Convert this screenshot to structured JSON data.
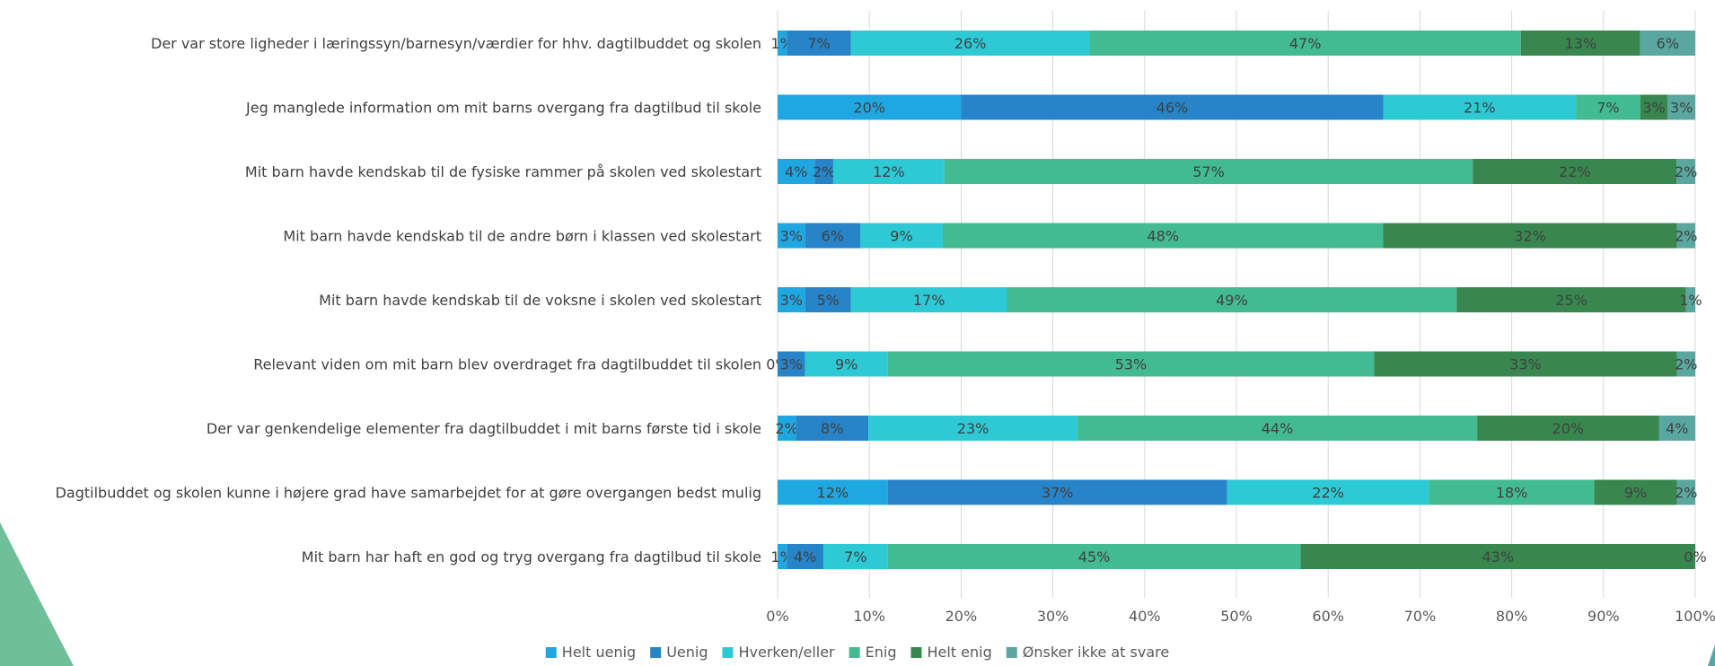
{
  "chart_data": {
    "type": "bar",
    "orientation": "horizontal",
    "stacked": "percent",
    "categories": [
      "Der var store ligheder i læringssyn/barnesyn/værdier for hhv. dagtilbuddet og skolen",
      "Jeg manglede information om mit barns overgang fra dagtilbud til skole",
      "Mit barn havde kendskab til de fysiske rammer på skolen ved skolestart",
      "Mit barn havde kendskab til de andre børn i klassen ved skolestart",
      "Mit barn havde kendskab til de voksne i skolen ved skolestart",
      "Relevant viden om mit barn blev overdraget fra dagtilbuddet til skolen",
      "Der var genkendelige elementer fra dagtilbuddet i mit barns første tid i skole",
      "Dagtilbuddet og skolen kunne i højere grad have samarbejdet for at gøre overgangen bedst mulig",
      "Mit barn har haft en god og tryg overgang fra dagtilbud til skole"
    ],
    "series": [
      {
        "name": "Helt uenig",
        "color": "#1fa7e1",
        "values": [
          1,
          20,
          4,
          3,
          3,
          0,
          2,
          12,
          1
        ],
        "labels": [
          "1%",
          "20%",
          "4%",
          "3%",
          "3%",
          "0%",
          "2%",
          "12%",
          "1%"
        ]
      },
      {
        "name": "Uenig",
        "color": "#2784c8",
        "values": [
          7,
          46,
          2,
          6,
          5,
          3,
          8,
          37,
          4
        ],
        "labels": [
          "7%",
          "46%",
          "2%",
          "6%",
          "5%",
          "3%",
          "8%",
          "37%",
          "4%"
        ]
      },
      {
        "name": "Hverken/eller",
        "color": "#2dcad6",
        "values": [
          26,
          21,
          12,
          9,
          17,
          9,
          23,
          22,
          7
        ],
        "labels": [
          "26%",
          "21%",
          "12%",
          "9%",
          "17%",
          "9%",
          "23%",
          "22%",
          "7%"
        ]
      },
      {
        "name": "Enig",
        "color": "#42ba92",
        "values": [
          47,
          7,
          57,
          48,
          49,
          53,
          44,
          18,
          45
        ],
        "labels": [
          "47%",
          "7%",
          "57%",
          "48%",
          "49%",
          "53%",
          "44%",
          "18%",
          "45%"
        ]
      },
      {
        "name": "Helt enig",
        "color": "#38874f",
        "values": [
          13,
          3,
          22,
          32,
          25,
          33,
          20,
          9,
          43
        ],
        "labels": [
          "13%",
          "3%",
          "22%",
          "32%",
          "25%",
          "33%",
          "20%",
          "9%",
          "43%"
        ]
      },
      {
        "name": "Ønsker ikke at svare",
        "color": "#5aa7a1",
        "values": [
          6,
          3,
          2,
          2,
          1,
          2,
          4,
          2,
          0
        ],
        "labels": [
          "6%",
          "3%",
          "2%",
          "2%",
          "1%",
          "2%",
          "4%",
          "2%",
          "0%"
        ]
      }
    ],
    "x_ticks": [
      "0%",
      "10%",
      "20%",
      "30%",
      "40%",
      "50%",
      "60%",
      "70%",
      "80%",
      "90%",
      "100%"
    ],
    "xlim": [
      0,
      100
    ],
    "grid": true,
    "legend": "bottom",
    "title": "",
    "xlabel": "",
    "ylabel": ""
  },
  "decoration_color": "#6fbf98"
}
